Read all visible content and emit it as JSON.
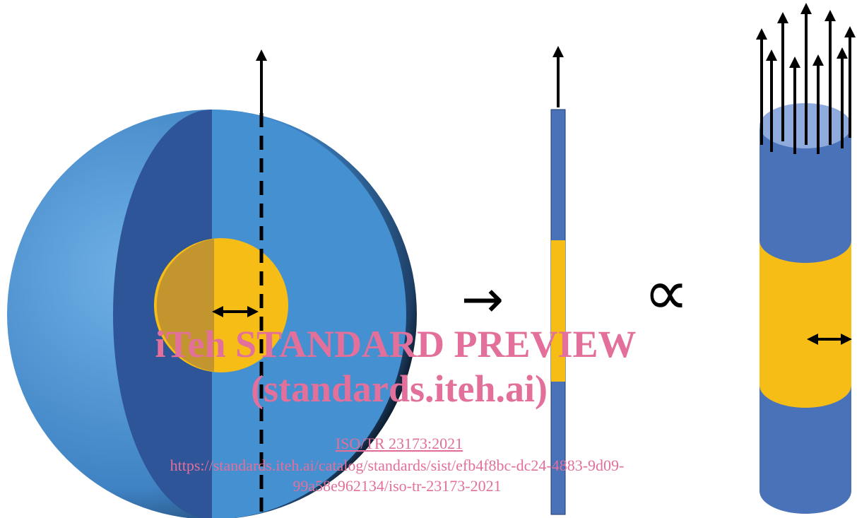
{
  "symbols": {
    "maps_to": "→",
    "proportional": "∝"
  },
  "watermark": {
    "title": "iTeh STANDARD PREVIEW",
    "subtitle": "(standards.iteh.ai)",
    "document": "ISO/TR 23173:2021",
    "url_line1": "https://standards.iteh.ai/catalog/standards/sist/efb4f8bc-dc24-4883-9d09-",
    "url_line2": "99a58e962134/iso-tr-23173-2021"
  }
}
